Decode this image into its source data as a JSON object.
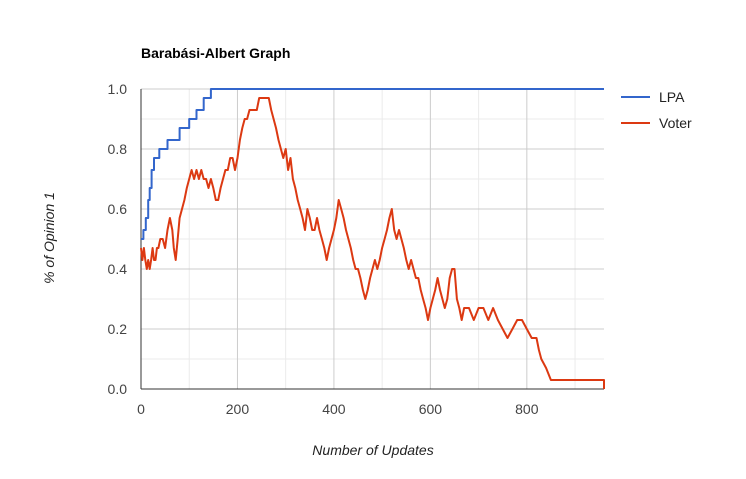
{
  "chart_data": {
    "type": "line",
    "title": "Barabási-Albert Graph",
    "xlabel": "Number of Updates",
    "ylabel": "% of Opinion 1",
    "xlim": [
      0,
      960
    ],
    "ylim": [
      0,
      1
    ],
    "x_ticks": [
      0,
      200,
      400,
      600,
      800
    ],
    "y_ticks": [
      0.0,
      0.2,
      0.4,
      0.6,
      0.8,
      1.0
    ],
    "x_tick_labels": [
      "0",
      "200",
      "400",
      "600",
      "800"
    ],
    "y_tick_labels": [
      "0.0",
      "0.2",
      "0.4",
      "0.6",
      "0.8",
      "1.0"
    ],
    "grid": true,
    "legend": "right",
    "series": [
      {
        "name": "LPA",
        "color": "#3366cc",
        "points": [
          [
            0,
            0.5
          ],
          [
            5,
            0.5
          ],
          [
            5,
            0.53
          ],
          [
            10,
            0.53
          ],
          [
            10,
            0.57
          ],
          [
            15,
            0.57
          ],
          [
            15,
            0.63
          ],
          [
            18,
            0.63
          ],
          [
            18,
            0.67
          ],
          [
            22,
            0.67
          ],
          [
            22,
            0.73
          ],
          [
            27,
            0.73
          ],
          [
            27,
            0.77
          ],
          [
            38,
            0.77
          ],
          [
            38,
            0.8
          ],
          [
            55,
            0.8
          ],
          [
            55,
            0.83
          ],
          [
            80,
            0.83
          ],
          [
            80,
            0.87
          ],
          [
            100,
            0.87
          ],
          [
            100,
            0.9
          ],
          [
            115,
            0.9
          ],
          [
            115,
            0.93
          ],
          [
            130,
            0.93
          ],
          [
            130,
            0.97
          ],
          [
            145,
            0.97
          ],
          [
            145,
            1.0
          ],
          [
            960,
            1.0
          ]
        ]
      },
      {
        "name": "Voter",
        "color": "#dc3912",
        "points": [
          [
            0,
            0.47
          ],
          [
            3,
            0.43
          ],
          [
            6,
            0.47
          ],
          [
            9,
            0.43
          ],
          [
            12,
            0.4
          ],
          [
            15,
            0.43
          ],
          [
            18,
            0.4
          ],
          [
            21,
            0.43
          ],
          [
            24,
            0.47
          ],
          [
            27,
            0.43
          ],
          [
            30,
            0.43
          ],
          [
            33,
            0.47
          ],
          [
            36,
            0.47
          ],
          [
            40,
            0.5
          ],
          [
            45,
            0.5
          ],
          [
            50,
            0.47
          ],
          [
            55,
            0.53
          ],
          [
            60,
            0.57
          ],
          [
            65,
            0.53
          ],
          [
            68,
            0.47
          ],
          [
            72,
            0.43
          ],
          [
            76,
            0.5
          ],
          [
            80,
            0.57
          ],
          [
            85,
            0.6
          ],
          [
            90,
            0.63
          ],
          [
            95,
            0.67
          ],
          [
            100,
            0.7
          ],
          [
            105,
            0.73
          ],
          [
            110,
            0.7
          ],
          [
            115,
            0.73
          ],
          [
            120,
            0.7
          ],
          [
            125,
            0.73
          ],
          [
            130,
            0.7
          ],
          [
            135,
            0.7
          ],
          [
            140,
            0.67
          ],
          [
            145,
            0.7
          ],
          [
            150,
            0.67
          ],
          [
            155,
            0.63
          ],
          [
            160,
            0.63
          ],
          [
            165,
            0.67
          ],
          [
            170,
            0.7
          ],
          [
            175,
            0.73
          ],
          [
            180,
            0.73
          ],
          [
            185,
            0.77
          ],
          [
            190,
            0.77
          ],
          [
            195,
            0.73
          ],
          [
            200,
            0.77
          ],
          [
            205,
            0.83
          ],
          [
            210,
            0.87
          ],
          [
            215,
            0.9
          ],
          [
            220,
            0.9
          ],
          [
            225,
            0.93
          ],
          [
            230,
            0.93
          ],
          [
            240,
            0.93
          ],
          [
            245,
            0.97
          ],
          [
            255,
            0.97
          ],
          [
            265,
            0.97
          ],
          [
            270,
            0.93
          ],
          [
            275,
            0.9
          ],
          [
            280,
            0.87
          ],
          [
            285,
            0.83
          ],
          [
            290,
            0.8
          ],
          [
            295,
            0.77
          ],
          [
            300,
            0.8
          ],
          [
            305,
            0.73
          ],
          [
            310,
            0.77
          ],
          [
            315,
            0.7
          ],
          [
            320,
            0.67
          ],
          [
            325,
            0.63
          ],
          [
            330,
            0.6
          ],
          [
            335,
            0.57
          ],
          [
            340,
            0.53
          ],
          [
            345,
            0.6
          ],
          [
            350,
            0.57
          ],
          [
            355,
            0.53
          ],
          [
            360,
            0.53
          ],
          [
            365,
            0.57
          ],
          [
            370,
            0.53
          ],
          [
            375,
            0.5
          ],
          [
            380,
            0.47
          ],
          [
            385,
            0.43
          ],
          [
            390,
            0.47
          ],
          [
            395,
            0.5
          ],
          [
            400,
            0.53
          ],
          [
            405,
            0.57
          ],
          [
            410,
            0.63
          ],
          [
            415,
            0.6
          ],
          [
            420,
            0.57
          ],
          [
            425,
            0.53
          ],
          [
            430,
            0.5
          ],
          [
            435,
            0.47
          ],
          [
            440,
            0.43
          ],
          [
            445,
            0.4
          ],
          [
            450,
            0.4
          ],
          [
            455,
            0.37
          ],
          [
            460,
            0.33
          ],
          [
            465,
            0.3
          ],
          [
            470,
            0.33
          ],
          [
            475,
            0.37
          ],
          [
            480,
            0.4
          ],
          [
            485,
            0.43
          ],
          [
            490,
            0.4
          ],
          [
            495,
            0.43
          ],
          [
            500,
            0.47
          ],
          [
            505,
            0.5
          ],
          [
            510,
            0.53
          ],
          [
            515,
            0.57
          ],
          [
            520,
            0.6
          ],
          [
            525,
            0.53
          ],
          [
            530,
            0.5
          ],
          [
            535,
            0.53
          ],
          [
            540,
            0.5
          ],
          [
            545,
            0.47
          ],
          [
            550,
            0.43
          ],
          [
            555,
            0.4
          ],
          [
            560,
            0.43
          ],
          [
            565,
            0.4
          ],
          [
            570,
            0.37
          ],
          [
            575,
            0.37
          ],
          [
            580,
            0.33
          ],
          [
            585,
            0.3
          ],
          [
            590,
            0.27
          ],
          [
            595,
            0.23
          ],
          [
            600,
            0.27
          ],
          [
            605,
            0.3
          ],
          [
            610,
            0.33
          ],
          [
            615,
            0.37
          ],
          [
            620,
            0.33
          ],
          [
            625,
            0.3
          ],
          [
            630,
            0.27
          ],
          [
            635,
            0.3
          ],
          [
            640,
            0.37
          ],
          [
            645,
            0.4
          ],
          [
            650,
            0.4
          ],
          [
            655,
            0.3
          ],
          [
            660,
            0.27
          ],
          [
            665,
            0.23
          ],
          [
            670,
            0.27
          ],
          [
            680,
            0.27
          ],
          [
            690,
            0.23
          ],
          [
            700,
            0.27
          ],
          [
            710,
            0.27
          ],
          [
            720,
            0.23
          ],
          [
            730,
            0.27
          ],
          [
            740,
            0.23
          ],
          [
            750,
            0.2
          ],
          [
            760,
            0.17
          ],
          [
            770,
            0.2
          ],
          [
            780,
            0.23
          ],
          [
            790,
            0.23
          ],
          [
            800,
            0.2
          ],
          [
            810,
            0.17
          ],
          [
            820,
            0.17
          ],
          [
            825,
            0.13
          ],
          [
            830,
            0.1
          ],
          [
            840,
            0.07
          ],
          [
            850,
            0.03
          ],
          [
            870,
            0.03
          ],
          [
            960,
            0.03
          ],
          [
            960,
            0.0
          ]
        ]
      }
    ]
  }
}
